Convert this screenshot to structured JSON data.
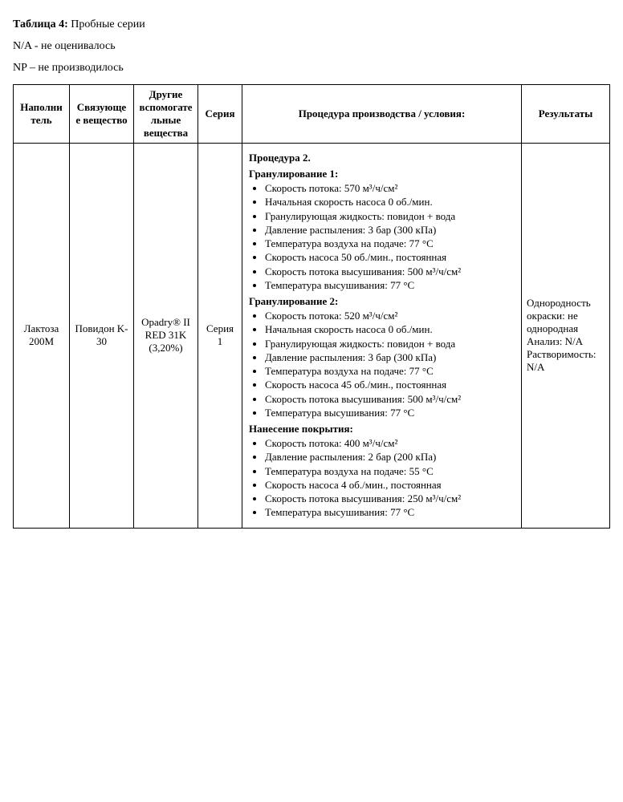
{
  "header": {
    "title_prefix": "Таблица 4:",
    "title_rest": " Пробные серии",
    "note1": "N/A - не оценивалось",
    "note2": "NP – не производилось"
  },
  "table": {
    "columns": {
      "filler": "Наполнитель",
      "binder": "Связующее вещество",
      "other": "Другие вспомогательные вещества",
      "series": "Серия",
      "proc": "Процедура производства / условия:",
      "result": "Результаты"
    },
    "row": {
      "filler": "Лактоза 200M",
      "binder": "Повидон K-30",
      "other": "Opadry® II RED 31K (3,20%)",
      "series": "Серия 1",
      "proc": {
        "title": "Процедура 2.",
        "g1_title": "Гранулирование 1:",
        "g1": [
          "Скорость потока: 570 м³/ч/см²",
          "Начальная скорость насоса 0 об./мин.",
          "Гранулирующая жидкость: повидон + вода",
          "Давление распыления: 3 бар (300 кПа)",
          "Температура воздуха на подаче: 77 °C",
          "Скорость насоса 50 об./мин., постоянная",
          "Скорость потока высушивания: 500 м³/ч/см²",
          "Температура высушивания: 77 °C"
        ],
        "g2_title": "Гранулирование 2:",
        "g2": [
          "Скорость потока: 520 м³/ч/см²",
          "Начальная скорость насоса 0 об./мин.",
          "Гранулирующая жидкость: повидон + вода",
          "Давление распыления: 3 бар (300 кПа)",
          "Температура воздуха на подаче: 77 °C",
          "Скорость насоса 45 об./мин., постоянная",
          "Скорость потока высушивания: 500 м³/ч/см²",
          "Температура высушивания: 77 °C"
        ],
        "coat_title": "Нанесение покрытия:",
        "coat": [
          "Скорость потока: 400 м³/ч/см²",
          "Давление распыления: 2 бар (200 кПа)",
          "Температура воздуха на подаче: 55 °C",
          "Скорость насоса 4 об./мин., постоянная",
          "Скорость потока высушивания: 250 м³/ч/см²",
          "Температура высушивания: 77 °C"
        ]
      },
      "result": "Однородность окраски:\nне однородная\nАнализ: N/A\nРастворимость: N/A"
    }
  }
}
